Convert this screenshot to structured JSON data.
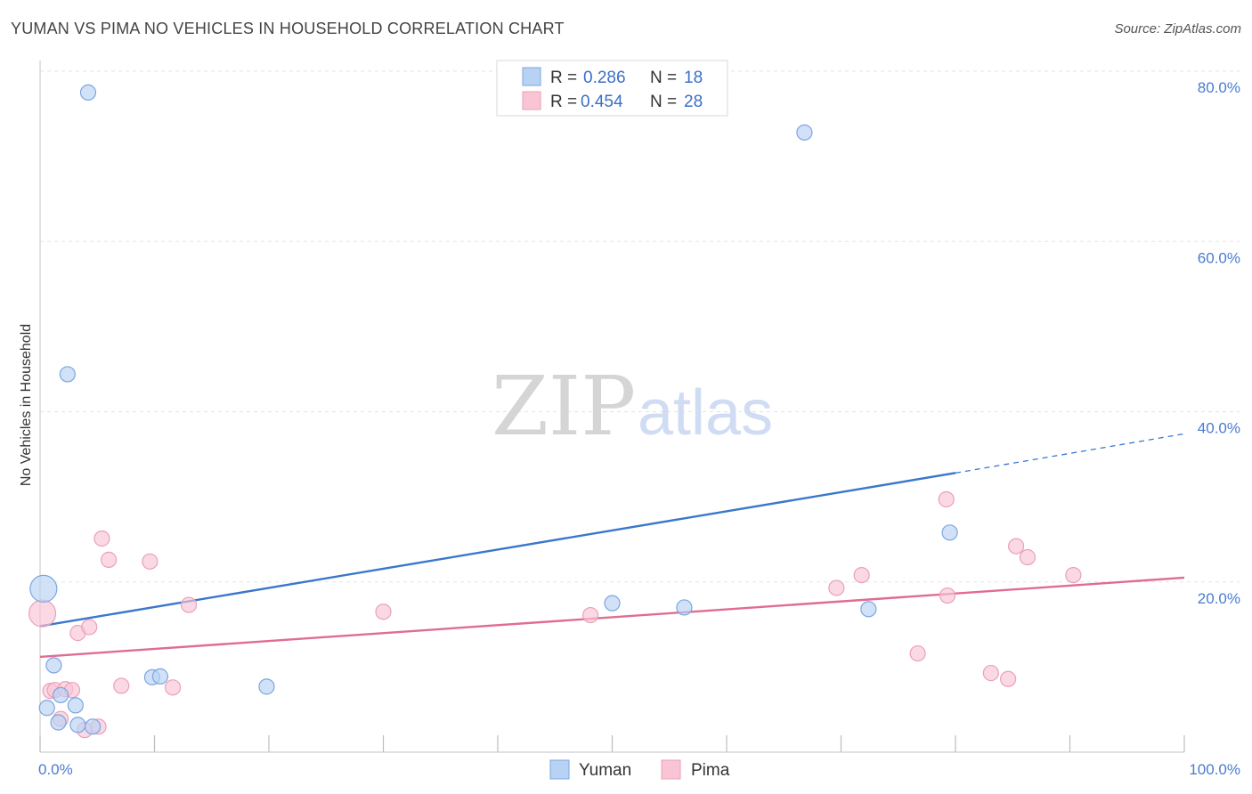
{
  "title": "YUMAN VS PIMA NO VEHICLES IN HOUSEHOLD CORRELATION CHART",
  "source": "Source: ZipAtlas.com",
  "watermark": {
    "zip": "ZIP",
    "atlas": "atlas"
  },
  "colors": {
    "yuman_fill": "#b8d2f4",
    "yuman_stroke": "#7aa6e0",
    "yuman_line": "#3a77cc",
    "pima_fill": "#f9c5d5",
    "pima_stroke": "#eaa0b8",
    "pima_line": "#e06c93",
    "axis_text": "#4a7bd0"
  },
  "legend": {
    "yuman": {
      "r_label": "R =",
      "r_value": "0.286",
      "n_label": "N =",
      "n_value": "18"
    },
    "pima": {
      "r_label": "R =",
      "r_value": "0.454",
      "n_label": "N =",
      "n_value": "28"
    }
  },
  "chart_data": {
    "type": "scatter",
    "title": "YUMAN VS PIMA NO VEHICLES IN HOUSEHOLD CORRELATION CHART",
    "xlabel": "",
    "ylabel": "No Vehicles in Household",
    "xlim": [
      0,
      100
    ],
    "ylim": [
      0,
      80
    ],
    "x_tick_labels": [
      "0.0%",
      "100.0%"
    ],
    "y_ticks": [
      20,
      40,
      60,
      80
    ],
    "y_tick_labels": [
      "20.0%",
      "40.0%",
      "60.0%",
      "80.0%"
    ],
    "legend_position": "top-center",
    "series": [
      {
        "name": "Yuman",
        "points": [
          {
            "x": 0.3,
            "y": 19.2,
            "big": true
          },
          {
            "x": 4.2,
            "y": 77.5
          },
          {
            "x": 2.4,
            "y": 44.4
          },
          {
            "x": 1.2,
            "y": 10.2
          },
          {
            "x": 0.6,
            "y": 5.2
          },
          {
            "x": 1.8,
            "y": 6.7
          },
          {
            "x": 3.1,
            "y": 5.5
          },
          {
            "x": 1.6,
            "y": 3.5
          },
          {
            "x": 3.3,
            "y": 3.2
          },
          {
            "x": 4.6,
            "y": 3.0
          },
          {
            "x": 9.8,
            "y": 8.8
          },
          {
            "x": 10.5,
            "y": 8.9
          },
          {
            "x": 19.8,
            "y": 7.7
          },
          {
            "x": 50.0,
            "y": 17.5
          },
          {
            "x": 56.3,
            "y": 17.0
          },
          {
            "x": 66.8,
            "y": 72.8
          },
          {
            "x": 72.4,
            "y": 16.8
          },
          {
            "x": 79.5,
            "y": 25.8
          }
        ],
        "trend": {
          "x0": 0,
          "y0": 14.8,
          "x1": 80,
          "y1": 32.8,
          "dash_to_x": 100,
          "dash_to_y": 37.4
        }
      },
      {
        "name": "Pima",
        "points": [
          {
            "x": 0.2,
            "y": 16.3,
            "big": true
          },
          {
            "x": 0.9,
            "y": 7.2
          },
          {
            "x": 1.3,
            "y": 7.3
          },
          {
            "x": 2.2,
            "y": 7.4
          },
          {
            "x": 2.8,
            "y": 7.3
          },
          {
            "x": 1.8,
            "y": 3.9
          },
          {
            "x": 3.3,
            "y": 14.0
          },
          {
            "x": 4.3,
            "y": 14.7
          },
          {
            "x": 3.9,
            "y": 2.6
          },
          {
            "x": 5.1,
            "y": 3.0
          },
          {
            "x": 5.4,
            "y": 25.1
          },
          {
            "x": 6.0,
            "y": 22.6
          },
          {
            "x": 7.1,
            "y": 7.8
          },
          {
            "x": 9.6,
            "y": 22.4
          },
          {
            "x": 11.6,
            "y": 7.6
          },
          {
            "x": 13.0,
            "y": 17.3
          },
          {
            "x": 30.0,
            "y": 16.5
          },
          {
            "x": 48.1,
            "y": 16.1
          },
          {
            "x": 69.6,
            "y": 19.3
          },
          {
            "x": 71.8,
            "y": 20.8
          },
          {
            "x": 76.7,
            "y": 11.6
          },
          {
            "x": 79.2,
            "y": 29.7
          },
          {
            "x": 79.3,
            "y": 18.4
          },
          {
            "x": 83.1,
            "y": 9.3
          },
          {
            "x": 84.6,
            "y": 8.6
          },
          {
            "x": 85.3,
            "y": 24.2
          },
          {
            "x": 86.3,
            "y": 22.9
          },
          {
            "x": 90.3,
            "y": 20.8
          }
        ],
        "trend": {
          "x0": 0,
          "y0": 11.2,
          "x1": 100,
          "y1": 20.5
        }
      }
    ]
  },
  "bottom_legend": [
    "Yuman",
    "Pima"
  ]
}
